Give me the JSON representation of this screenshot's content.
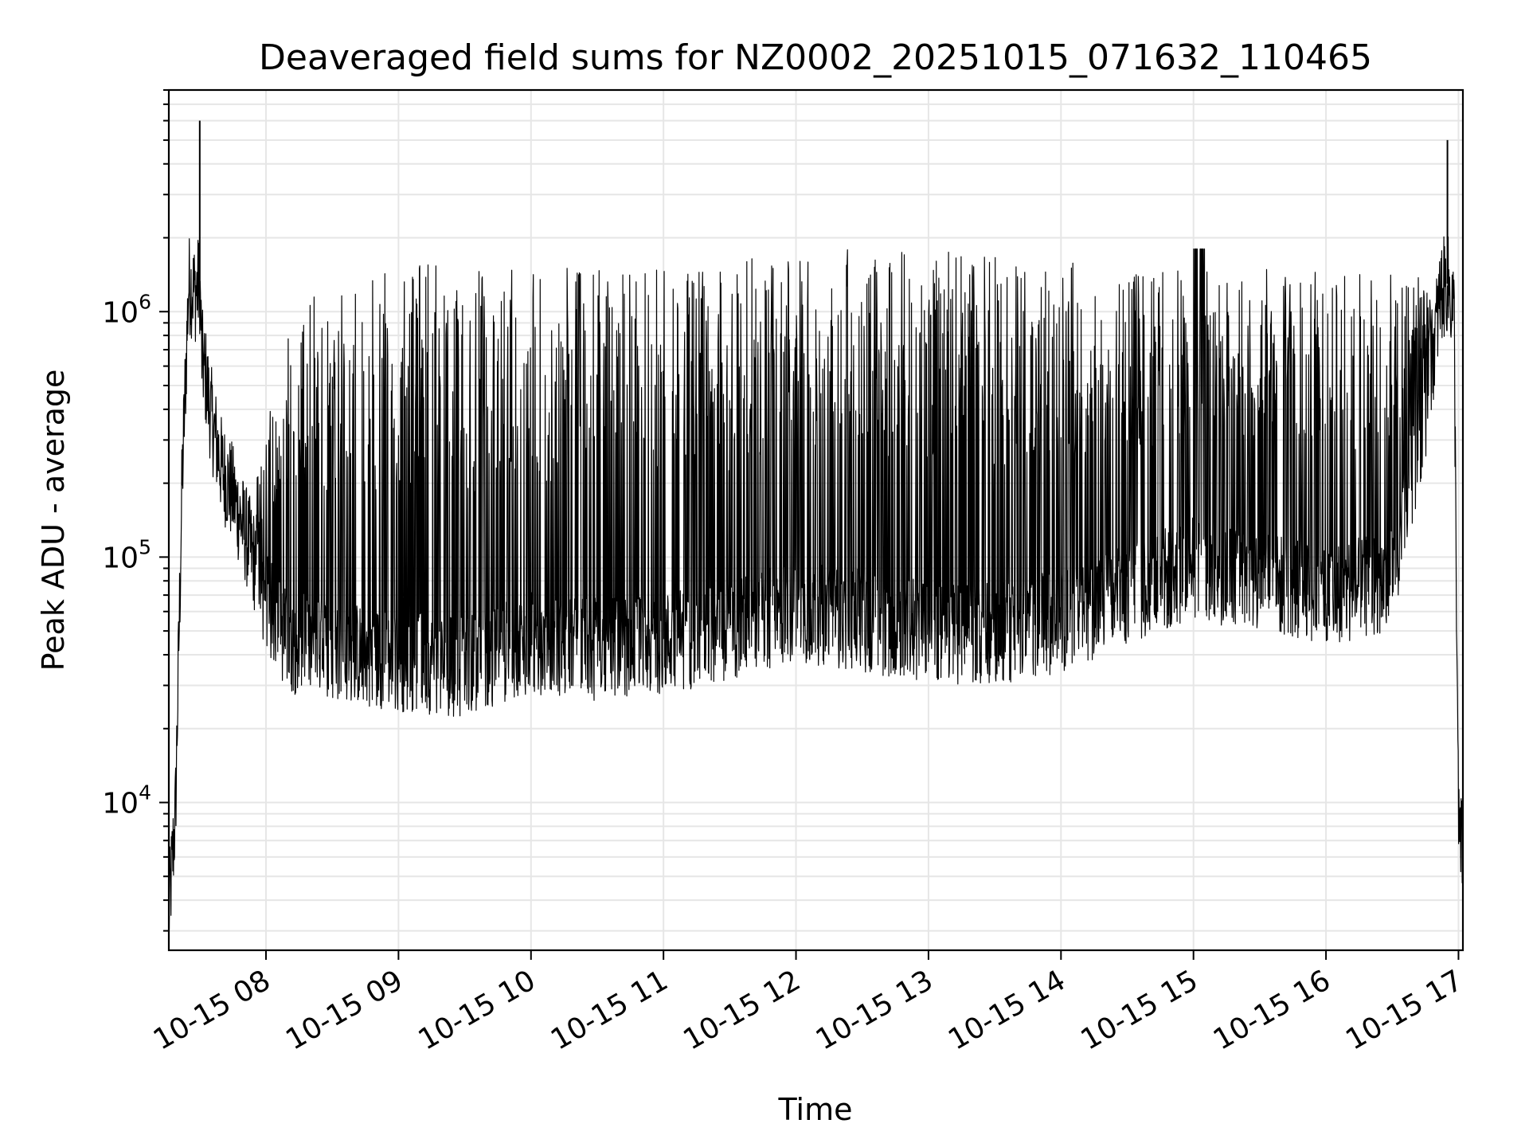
{
  "chart_data": {
    "type": "line",
    "title": "Deaveraged field sums for NZ0002_20251015_071632_110465",
    "xlabel": "Time",
    "ylabel": "Peak ADU - average",
    "yscale": "log",
    "ylim": [
      2500,
      8000000
    ],
    "xlim": [
      "2025-10-15 07:16",
      "2025-10-15 17:02"
    ],
    "x_ticks": [
      "10-15 08",
      "10-15 09",
      "10-15 10",
      "10-15 11",
      "10-15 12",
      "10-15 13",
      "10-15 14",
      "10-15 15",
      "10-15 16",
      "10-15 17"
    ],
    "y_ticks": [
      {
        "value": 10000,
        "base": "10",
        "exp": "4"
      },
      {
        "value": 100000,
        "base": "10",
        "exp": "5"
      },
      {
        "value": 1000000,
        "base": "10",
        "exp": "6"
      }
    ],
    "grid": true,
    "line_color": "#000000",
    "grid_color": "#e6e6e6",
    "series": [
      {
        "x": [
          "2025-10-15 07:16",
          "2025-10-15 07:19",
          "2025-10-15 07:22",
          "2025-10-15 07:25",
          "2025-10-15 07:28",
          "2025-10-15 07:30",
          "2025-10-15 07:31",
          "2025-10-15 07:33",
          "2025-10-15 07:35",
          "2025-10-15 07:38",
          "2025-10-15 07:40",
          "2025-10-15 07:45",
          "2025-10-15 07:50",
          "2025-10-15 07:55",
          "2025-10-15 08:00",
          "2025-10-15 08:10",
          "2025-10-15 08:30",
          "2025-10-15 09:00",
          "2025-10-15 09:30",
          "2025-10-15 10:00",
          "2025-10-15 10:30",
          "2025-10-15 11:00",
          "2025-10-15 11:30",
          "2025-10-15 12:00",
          "2025-10-15 12:30",
          "2025-10-15 13:00",
          "2025-10-15 13:30",
          "2025-10-15 14:00",
          "2025-10-15 14:30",
          "2025-10-15 15:00",
          "2025-10-15 15:30",
          "2025-10-15 16:00",
          "2025-10-15 16:30",
          "2025-10-15 16:45",
          "2025-10-15 16:52",
          "2025-10-15 16:55",
          "2025-10-15 16:58",
          "2025-10-15 17:00",
          "2025-10-15 17:02"
        ],
        "y": [
          3500,
          9000,
          200000,
          1300000,
          1200000,
          6000000,
          700000,
          550000,
          400000,
          300000,
          250000,
          200000,
          150000,
          110000,
          70000,
          50000,
          45000,
          40000,
          40000,
          45000,
          45000,
          50000,
          55000,
          65000,
          60000,
          55000,
          52000,
          60000,
          80000,
          100000,
          90000,
          80000,
          90000,
          500000,
          1300000,
          5000000,
          1100000,
          8000,
          6000
        ],
        "baseline_y": [
          3500,
          9000,
          200000,
          1300000,
          1200000,
          1300000,
          650000,
          520000,
          380000,
          280000,
          230000,
          180000,
          130000,
          95000,
          65000,
          45000,
          42000,
          38000,
          36000,
          45000,
          42000,
          45000,
          50000,
          60000,
          55000,
          50000,
          48000,
          55000,
          70000,
          90000,
          80000,
          70000,
          80000,
          400000,
          1200000,
          1300000,
          1000000,
          8000,
          6000
        ],
        "burst_top_y": [
          3500,
          9000,
          200000,
          1300000,
          1200000,
          1300000,
          700000,
          600000,
          500000,
          400000,
          350000,
          300000,
          250000,
          200000,
          300000,
          800000,
          1200000,
          1300000,
          1300000,
          1300000,
          1300000,
          1300000,
          1400000,
          1500000,
          1550000,
          1500000,
          1450000,
          1400000,
          1350000,
          1300000,
          1300000,
          1300000,
          1300000,
          1300000,
          1300000,
          1300000,
          1100000,
          8000,
          6000
        ]
      }
    ]
  }
}
